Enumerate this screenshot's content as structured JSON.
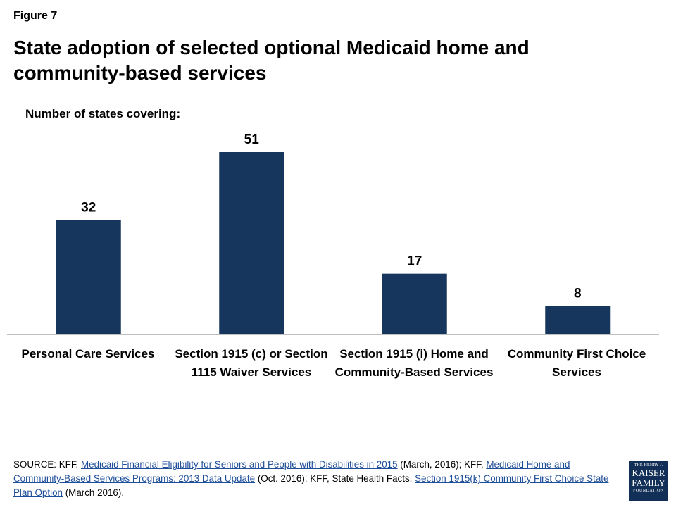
{
  "figure_label": "Figure 7",
  "title": "State adoption of selected optional Medicaid home and community-based services",
  "subtitle": "Number of states covering:",
  "colors": {
    "bar": "#17365d",
    "axis": "#bfbfbf"
  },
  "chart_data": {
    "type": "bar",
    "categories": [
      "Personal Care Services",
      "Section 1915 (c) or Section 1115 Waiver Services",
      "Section 1915 (i) Home and Community-Based Services",
      "Community First Choice Services"
    ],
    "values": [
      32,
      51,
      17,
      8
    ],
    "ylabel": "Number of states covering:",
    "ylim": [
      0,
      51
    ],
    "data_labels": [
      "32",
      "51",
      "17",
      "8"
    ],
    "grid": false,
    "legend": "none"
  },
  "source": {
    "prefix": "SOURCE: KFF, ",
    "link1": "Medicaid Financial Eligibility for Seniors and People with Disabilities in 2015",
    "mid1": " (March, 2016); KFF, ",
    "link2": "Medicaid Home and Community-Based Services Programs: 2013 Data Update",
    "mid2": " (Oct. 2016); KFF, State Health Facts, ",
    "link3": "Section 1915(k) Community First Choice State Plan Option",
    "suffix": " (March 2016)."
  },
  "logo": {
    "line1": "THE HENRY J.",
    "line2": "KAISER",
    "line3": "FAMILY",
    "line4": "FOUNDATION"
  }
}
